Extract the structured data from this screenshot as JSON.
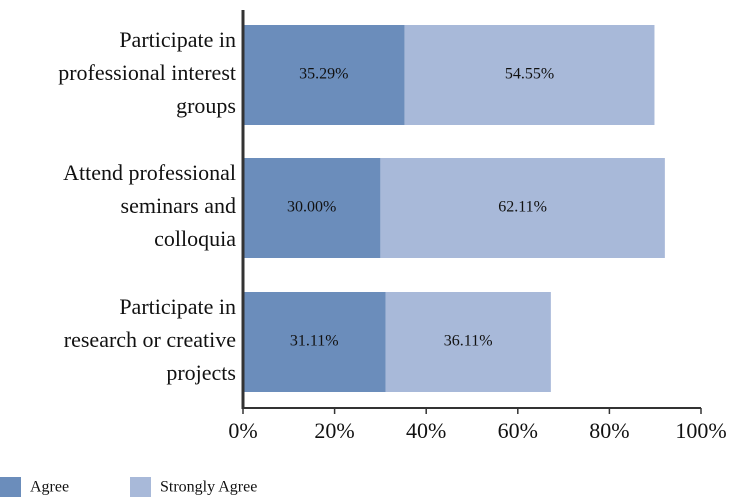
{
  "chart_data": {
    "type": "stacked_barh",
    "categories": [
      "Participate in\nprofessional interest\ngroups",
      "Attend professional\nseminars and\ncolloquia",
      "Participate in\nresearch or creative\nprojects"
    ],
    "series": [
      {
        "name": "Agree",
        "color": "#6b8dbb",
        "values": [
          35.29,
          30.0,
          31.11
        ],
        "value_labels": [
          "35.29%",
          "30.00%",
          "31.11%"
        ]
      },
      {
        "name": "Strongly Agree",
        "color": "#a8b9d9",
        "values": [
          54.55,
          62.11,
          36.11
        ],
        "value_labels": [
          "54.55%",
          "62.11%",
          "36.11%"
        ]
      }
    ],
    "xlim": [
      0,
      100
    ],
    "xticks": [
      {
        "value": 0,
        "label": "0%"
      },
      {
        "value": 20,
        "label": "20%"
      },
      {
        "value": 40,
        "label": "40%"
      },
      {
        "value": 60,
        "label": "60%"
      },
      {
        "value": 80,
        "label": "80%"
      },
      {
        "value": 100,
        "label": "100%"
      }
    ],
    "legend": "bottom"
  }
}
